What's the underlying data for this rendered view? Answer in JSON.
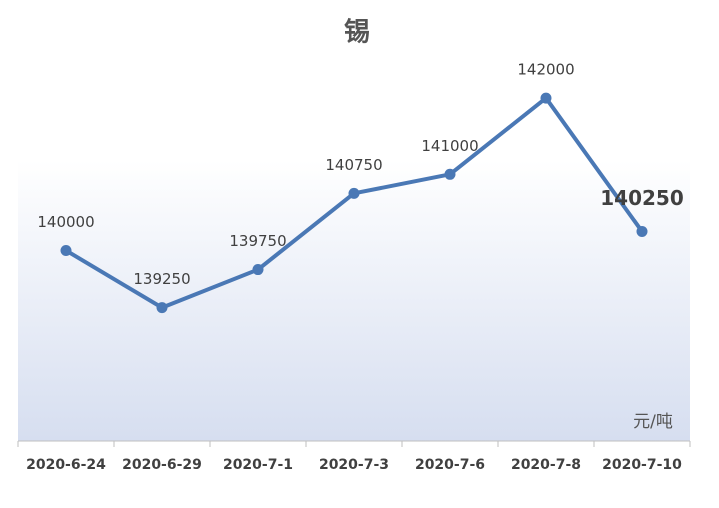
{
  "chart_data": {
    "type": "line",
    "title": "锡",
    "unit_label": "元/吨",
    "categories": [
      "2020-6-24",
      "2020-6-29",
      "2020-7-1",
      "2020-7-3",
      "2020-7-6",
      "2020-7-8",
      "2020-7-10"
    ],
    "series": [
      {
        "name": "锡",
        "color": "#4a78b5",
        "values": [
          140000,
          139250,
          139750,
          140750,
          141000,
          142000,
          140250
        ]
      }
    ],
    "ylim": [
      137500,
      142500
    ]
  }
}
